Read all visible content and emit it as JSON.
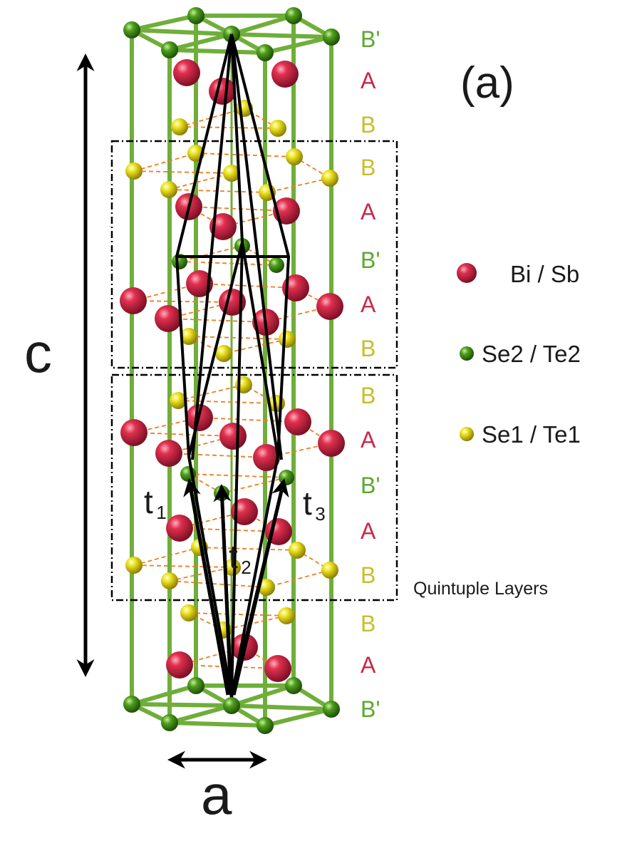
{
  "panel_label": "(a)",
  "axis_labels": {
    "c": "c",
    "a": "a"
  },
  "vector_labels": [
    {
      "base": "t",
      "sub": "1"
    },
    {
      "base": "t",
      "sub": "2"
    },
    {
      "base": "t",
      "sub": "3"
    }
  ],
  "stacking_sequence": [
    "B'",
    "A",
    "B",
    "B",
    "A",
    "B'",
    "A",
    "B",
    "B",
    "A",
    "B'",
    "A",
    "B",
    "B",
    "A",
    "B'"
  ],
  "quintuple_label": "Quintuple Layers",
  "legend": [
    {
      "label": "Bi / Sb",
      "color": "#c8203e",
      "icon": "red-sphere-icon"
    },
    {
      "label": "Se2 / Te2",
      "color": "#3a8f16",
      "icon": "green-sphere-icon"
    },
    {
      "label": "Se1 / Te1",
      "color": "#d8d01a",
      "icon": "yellow-sphere-icon"
    }
  ],
  "colors": {
    "A": "#c8284a",
    "B": "#c9bd2a",
    "Bprime": "#5aa82c",
    "frame": "#6fae3a",
    "bond": "#f07d1e"
  }
}
